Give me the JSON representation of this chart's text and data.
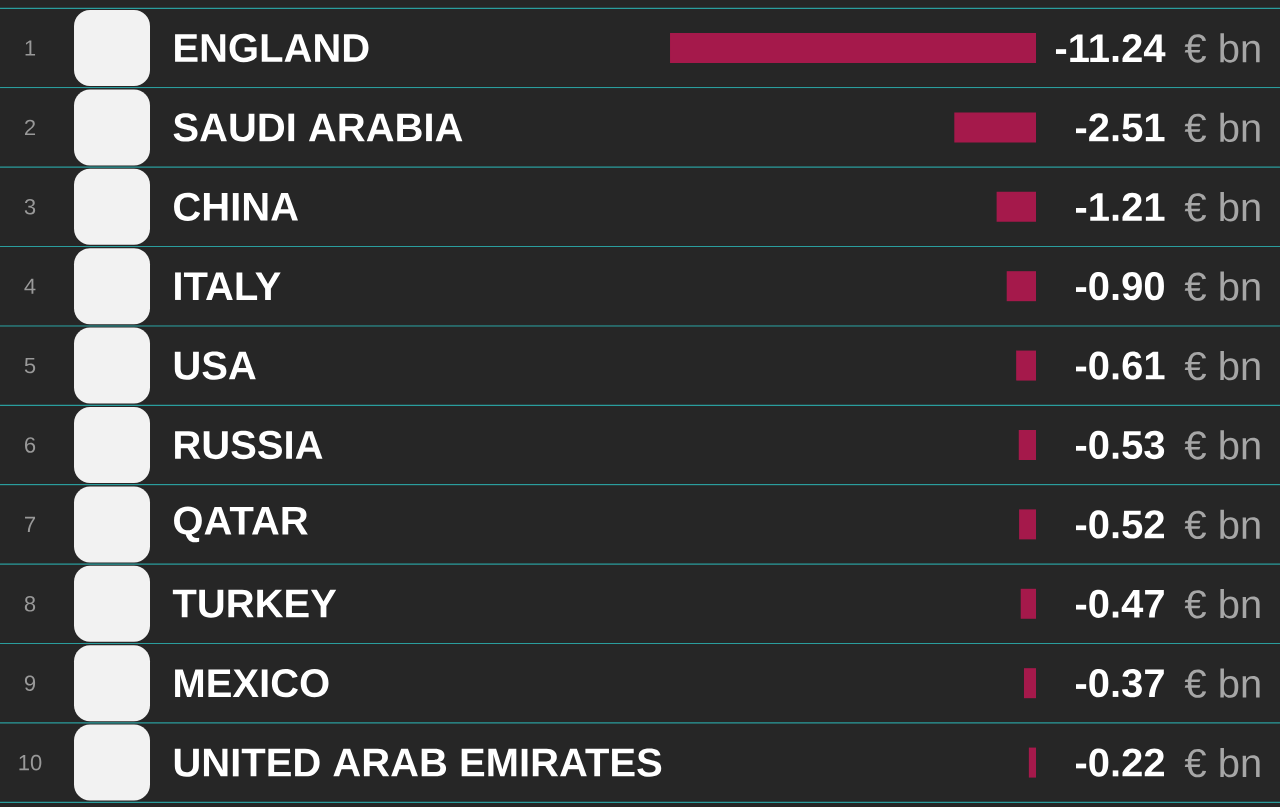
{
  "chart_data": {
    "type": "bar",
    "orientation": "horizontal",
    "categories": [
      "ENGLAND",
      "SAUDI ARABIA",
      "CHINA",
      "ITALY",
      "USA",
      "RUSSIA",
      "QATAR",
      "TURKEY",
      "MEXICO",
      "UNITED ARAB EMIRATES"
    ],
    "values": [
      -11.24,
      -2.51,
      -1.21,
      -0.9,
      -0.61,
      -0.53,
      -0.52,
      -0.47,
      -0.37,
      -0.22
    ],
    "value_labels": [
      "-11.24",
      "-2.51",
      "-1.21",
      "-0.90",
      "-0.61",
      "-0.53",
      "-0.52",
      "-0.47",
      "-0.37",
      "-0.22"
    ],
    "color": "#a5194b",
    "annotations": [
      "1",
      "2",
      "3",
      "4",
      "5",
      "6",
      "7",
      "8",
      "9",
      "10",
      "€ bn",
      "€ bn",
      "€ bn",
      "€ bn",
      "€ bn",
      "€ bn",
      "€ bn",
      "€ bn",
      "€ bn",
      "€ bn"
    ]
  }
}
